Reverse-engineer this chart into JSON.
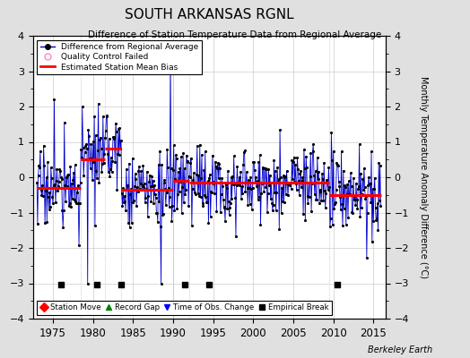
{
  "title": "SOUTH ARKANSAS RGNL",
  "subtitle": "Difference of Station Temperature Data from Regional Average",
  "ylabel": "Monthly Temperature Anomaly Difference (°C)",
  "xlabel_years": [
    1975,
    1980,
    1985,
    1990,
    1995,
    2000,
    2005,
    2010,
    2015
  ],
  "ylim": [
    -4,
    4
  ],
  "xlim": [
    1972.5,
    2016.5
  ],
  "background_color": "#e0e0e0",
  "plot_bg_color": "#ffffff",
  "line_color": "#0000cc",
  "marker_color": "#000000",
  "qc_color": "#ff88cc",
  "bias_color": "#ff0000",
  "bias_linewidth": 2.2,
  "footer": "Berkeley Earth",
  "segments": [
    {
      "start": 1973.0,
      "end": 1978.5,
      "bias": -0.3
    },
    {
      "start": 1978.5,
      "end": 1981.5,
      "bias": 0.5
    },
    {
      "start": 1981.5,
      "end": 1983.5,
      "bias": 0.8
    },
    {
      "start": 1983.5,
      "end": 1990.0,
      "bias": -0.35
    },
    {
      "start": 1990.0,
      "end": 1992.0,
      "bias": -0.1
    },
    {
      "start": 1992.0,
      "end": 2009.5,
      "bias": -0.15
    },
    {
      "start": 2009.5,
      "end": 2016.0,
      "bias": -0.5
    }
  ],
  "empirical_breaks": [
    1976.0,
    1980.5,
    1983.5,
    1991.5,
    1994.5,
    2010.5
  ],
  "seed": 17
}
